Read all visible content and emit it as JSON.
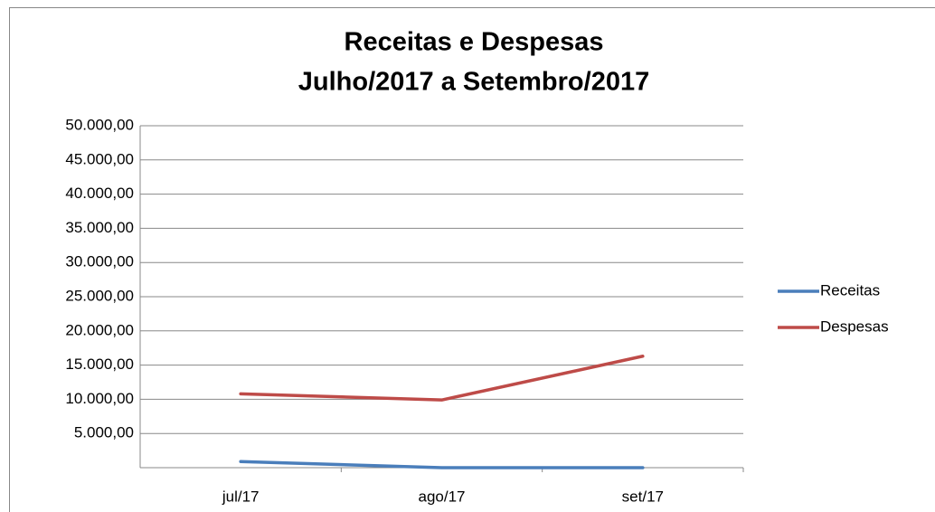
{
  "chart_data": {
    "type": "line",
    "title": "Receitas e Despesas",
    "subtitle": "Julho/2017 a Setembro/2017",
    "categories": [
      "jul/17",
      "ago/17",
      "set/17"
    ],
    "series": [
      {
        "name": "Receitas",
        "color": "#4a7ebb",
        "values": [
          900,
          0,
          0
        ]
      },
      {
        "name": "Despesas",
        "color": "#be4b48",
        "values": [
          10800,
          9900,
          16300
        ]
      }
    ],
    "ylim": [
      0,
      50000
    ],
    "yticks": [
      {
        "value": 5000,
        "label": "5.000,00"
      },
      {
        "value": 10000,
        "label": "10.000,00"
      },
      {
        "value": 15000,
        "label": "15.000,00"
      },
      {
        "value": 20000,
        "label": "20.000,00"
      },
      {
        "value": 25000,
        "label": "25.000,00"
      },
      {
        "value": 30000,
        "label": "30.000,00"
      },
      {
        "value": 35000,
        "label": "35.000,00"
      },
      {
        "value": 40000,
        "label": "40.000,00"
      },
      {
        "value": 45000,
        "label": "45.000,00"
      },
      {
        "value": 50000,
        "label": "50.000,00"
      }
    ],
    "grid": true,
    "legend": "right"
  }
}
